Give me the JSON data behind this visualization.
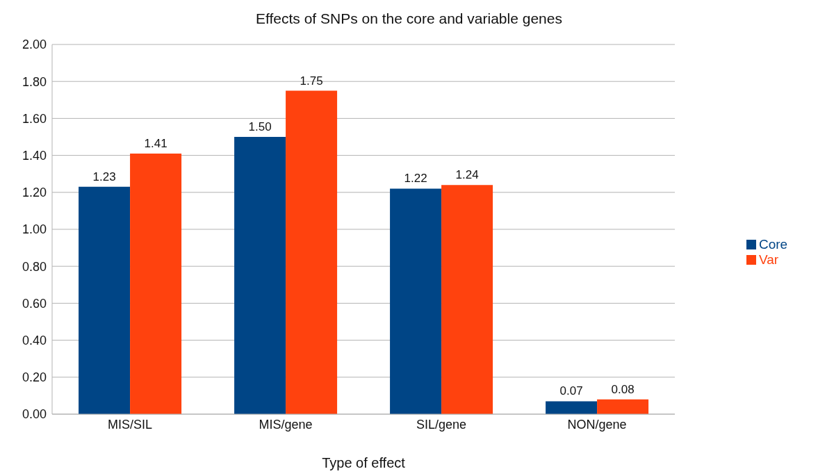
{
  "chart_data": {
    "type": "bar",
    "title": "Effects of SNPs on the core and variable genes",
    "xlabel": "Type of effect",
    "categories": [
      "MIS/SIL",
      "MIS/gene",
      "SIL/gene",
      "NON/gene"
    ],
    "series": [
      {
        "name": "Core",
        "color": "#004586",
        "values": [
          1.23,
          1.5,
          1.22,
          0.07
        ],
        "value_labels": [
          "1.23",
          "1.50",
          "1.22",
          "0.07"
        ]
      },
      {
        "name": "Var",
        "color": "#ff420e",
        "values": [
          1.41,
          1.75,
          1.24,
          0.08
        ],
        "value_labels": [
          "1.41",
          "1.75",
          "1.24",
          "0.08"
        ]
      }
    ],
    "ylim": [
      0,
      2
    ],
    "yticks": [
      {
        "value": 0,
        "label": "0.00"
      },
      {
        "value": 0.2,
        "label": "0.20"
      },
      {
        "value": 0.4,
        "label": "0.40"
      },
      {
        "value": 0.6,
        "label": "0.60"
      },
      {
        "value": 0.8,
        "label": "0.80"
      },
      {
        "value": 1,
        "label": "1.00"
      },
      {
        "value": 1.2,
        "label": "1.20"
      },
      {
        "value": 1.4,
        "label": "1.40"
      },
      {
        "value": 1.6,
        "label": "1.60"
      },
      {
        "value": 1.8,
        "label": "1.80"
      },
      {
        "value": 2,
        "label": "2.00"
      }
    ],
    "grid": "y",
    "legend": "right"
  }
}
